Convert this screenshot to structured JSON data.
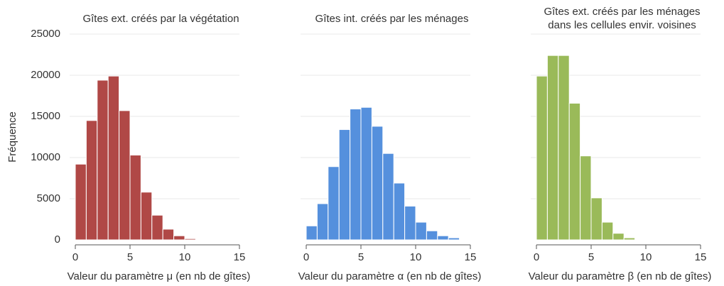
{
  "chart_data": [
    {
      "type": "histogram",
      "title": "Gîtes ext. créés par la végétation",
      "xlabel": "Valeur du paramètre  μ (en nb de gîtes)",
      "ylabel": "Fréquence",
      "bins": [
        0,
        1,
        2,
        3,
        4,
        5,
        6,
        7,
        8,
        9,
        10,
        11
      ],
      "counts": [
        9200,
        14500,
        19400,
        19900,
        15700,
        10300,
        5800,
        3000,
        1300,
        500,
        150
      ],
      "color": "#b04846",
      "xlim": [
        0,
        15
      ],
      "xticks": [
        0,
        5,
        10,
        15
      ],
      "ylim": [
        0,
        25000
      ],
      "yticks": [
        0,
        5000,
        10000,
        15000,
        20000,
        25000
      ],
      "grid": true
    },
    {
      "type": "histogram",
      "title": "Gîtes int. créés par les ménages",
      "xlabel": "Valeur du paramètre  α (en nb de gîtes)",
      "bins": [
        0,
        1,
        2,
        3,
        4,
        5,
        6,
        7,
        8,
        9,
        10,
        11,
        12,
        13,
        14
      ],
      "counts": [
        1700,
        4400,
        8900,
        13400,
        15900,
        16100,
        13800,
        10500,
        6900,
        4100,
        2150,
        1100,
        500,
        250
      ],
      "color": "#5590dd",
      "xlim": [
        0,
        15
      ],
      "xticks": [
        0,
        5,
        10,
        15
      ],
      "ylim": [
        0,
        25000
      ],
      "grid": true
    },
    {
      "type": "histogram",
      "title": "Gîtes ext. créés par les ménages\ndans les cellules envir. voisines",
      "xlabel": "Valeur du paramètre  β (en nb de gîtes)",
      "bins": [
        0,
        1,
        2,
        3,
        4,
        5,
        6,
        7,
        8,
        9
      ],
      "counts": [
        19900,
        22400,
        22400,
        16600,
        10200,
        5100,
        2150,
        800,
        250
      ],
      "color": "#9aba59",
      "xlim": [
        0,
        15
      ],
      "xticks": [
        0,
        5,
        10,
        15
      ],
      "ylim": [
        0,
        25000
      ],
      "grid": true
    }
  ]
}
